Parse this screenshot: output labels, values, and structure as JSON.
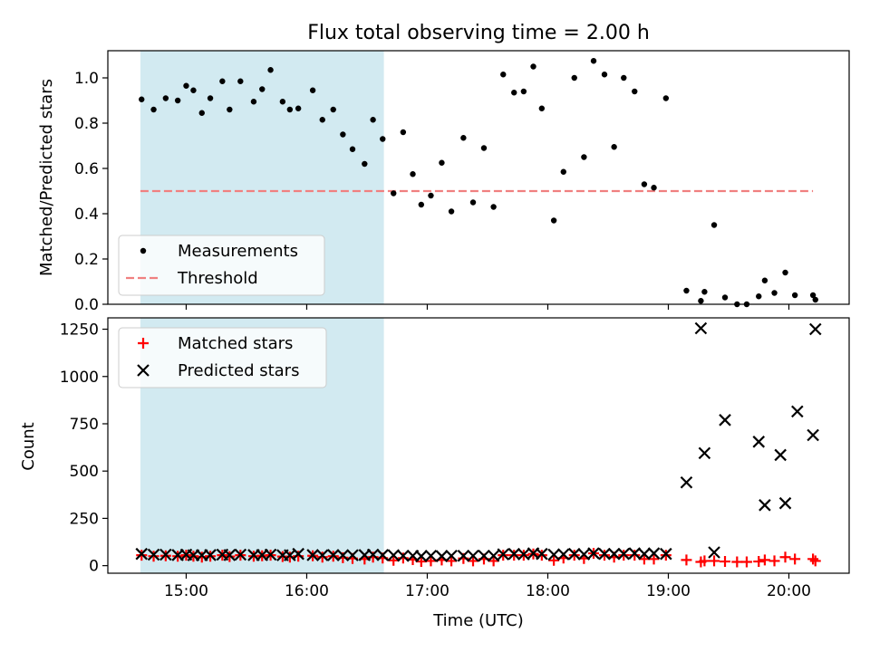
{
  "chart_data": [
    {
      "type": "scatter",
      "title": "Flux total observing time = 2.00 h",
      "xlabel": "",
      "ylabel": "Matched/Predicted stars",
      "xlim_hours": [
        14.35,
        20.5
      ],
      "ylim": [
        0,
        1.12
      ],
      "yticks": [
        0.0,
        0.2,
        0.4,
        0.6,
        0.8,
        1.0
      ],
      "ytick_labels": [
        "0.0",
        "0.2",
        "0.4",
        "0.6",
        "0.8",
        "1.0"
      ],
      "shaded_span_hours": [
        14.62,
        16.64
      ],
      "shaded_color": "#add8e6",
      "legend": [
        {
          "label": "Measurements",
          "marker": "dot",
          "color": "#000000"
        },
        {
          "label": "Threshold",
          "marker": "dashed-line",
          "color": "#f08080"
        }
      ],
      "threshold": {
        "value": 0.5,
        "x_range_hours": [
          14.62,
          20.2
        ],
        "color": "#f08080"
      },
      "series": [
        {
          "name": "Measurements",
          "color": "#000000",
          "x_hours": [
            14.63,
            14.73,
            14.83,
            14.93,
            15.0,
            15.06,
            15.13,
            15.2,
            15.3,
            15.36,
            15.45,
            15.56,
            15.63,
            15.7,
            15.8,
            15.86,
            15.93,
            16.05,
            16.13,
            16.22,
            16.3,
            16.38,
            16.48,
            16.55,
            16.63,
            16.72,
            16.8,
            16.88,
            16.95,
            17.03,
            17.12,
            17.2,
            17.3,
            17.38,
            17.47,
            17.55,
            17.63,
            17.72,
            17.8,
            17.88,
            17.95,
            18.05,
            18.13,
            18.22,
            18.3,
            18.38,
            18.47,
            18.55,
            18.63,
            18.72,
            18.8,
            18.88,
            18.98,
            19.15,
            19.27,
            19.3,
            19.38,
            19.47,
            19.57,
            19.65,
            19.75,
            19.8,
            19.88,
            19.97,
            20.05,
            20.2,
            20.22
          ],
          "y": [
            0.905,
            0.86,
            0.91,
            0.9,
            0.965,
            0.945,
            0.845,
            0.91,
            0.985,
            0.86,
            0.985,
            0.895,
            0.95,
            1.035,
            0.895,
            0.86,
            0.865,
            0.945,
            0.815,
            0.86,
            0.75,
            0.685,
            0.62,
            0.815,
            0.73,
            0.49,
            0.76,
            0.575,
            0.44,
            0.48,
            0.625,
            0.41,
            0.735,
            0.45,
            0.69,
            0.43,
            1.015,
            0.935,
            0.94,
            1.05,
            0.865,
            0.37,
            0.585,
            1.0,
            0.65,
            1.075,
            1.015,
            0.695,
            1.0,
            0.94,
            0.53,
            0.515,
            0.91,
            0.06,
            0.015,
            0.055,
            0.35,
            0.03,
            0.0,
            0.0,
            0.035,
            0.105,
            0.05,
            0.14,
            0.04,
            0.04,
            0.02
          ]
        }
      ]
    },
    {
      "type": "scatter",
      "title": "",
      "xlabel": "Time (UTC)",
      "ylabel": "Count",
      "xlim_hours": [
        14.35,
        20.5
      ],
      "ylim": [
        -40,
        1310
      ],
      "yticks": [
        0,
        250,
        500,
        750,
        1000,
        1250
      ],
      "ytick_labels": [
        "0",
        "250",
        "500",
        "750",
        "1000",
        "1250"
      ],
      "xticks_hours": [
        15,
        16,
        17,
        18,
        19,
        20
      ],
      "xtick_labels": [
        "15:00",
        "16:00",
        "17:00",
        "18:00",
        "19:00",
        "20:00"
      ],
      "shaded_span_hours": [
        14.62,
        16.64
      ],
      "shaded_color": "#add8e6",
      "legend": [
        {
          "label": "Matched stars",
          "marker": "plus",
          "color": "#ff0000"
        },
        {
          "label": "Predicted stars",
          "marker": "x",
          "color": "#000000"
        }
      ],
      "series": [
        {
          "name": "Matched stars",
          "marker": "plus",
          "color": "#ff0000",
          "x_hours": [
            14.63,
            14.73,
            14.83,
            14.93,
            15.0,
            15.06,
            15.13,
            15.2,
            15.3,
            15.36,
            15.45,
            15.56,
            15.63,
            15.7,
            15.8,
            15.86,
            15.93,
            16.05,
            16.13,
            16.22,
            16.3,
            16.38,
            16.48,
            16.55,
            16.63,
            16.72,
            16.8,
            16.88,
            16.95,
            17.03,
            17.12,
            17.2,
            17.3,
            17.38,
            17.47,
            17.55,
            17.63,
            17.72,
            17.8,
            17.88,
            17.95,
            18.05,
            18.13,
            18.22,
            18.3,
            18.38,
            18.47,
            18.55,
            18.63,
            18.72,
            18.8,
            18.88,
            18.98,
            19.15,
            19.27,
            19.3,
            19.38,
            19.47,
            19.57,
            19.65,
            19.75,
            19.8,
            19.88,
            19.97,
            20.05,
            20.2,
            20.22
          ],
          "y": [
            55,
            50,
            52,
            50,
            55,
            50,
            45,
            50,
            55,
            48,
            55,
            50,
            52,
            55,
            48,
            45,
            50,
            52,
            45,
            50,
            42,
            38,
            35,
            45,
            40,
            28,
            40,
            32,
            22,
            25,
            30,
            25,
            38,
            25,
            35,
            25,
            55,
            55,
            55,
            62,
            55,
            28,
            40,
            55,
            38,
            65,
            55,
            45,
            55,
            55,
            35,
            35,
            55,
            30,
            20,
            25,
            25,
            22,
            20,
            20,
            22,
            30,
            25,
            45,
            35,
            35,
            25
          ]
        },
        {
          "name": "Predicted stars",
          "marker": "x",
          "color": "#000000",
          "x_hours": [
            14.63,
            14.73,
            14.83,
            14.93,
            15.0,
            15.06,
            15.13,
            15.2,
            15.3,
            15.36,
            15.45,
            15.56,
            15.63,
            15.7,
            15.8,
            15.86,
            15.93,
            16.05,
            16.13,
            16.22,
            16.3,
            16.38,
            16.48,
            16.55,
            16.63,
            16.72,
            16.8,
            16.88,
            16.95,
            17.03,
            17.12,
            17.2,
            17.3,
            17.38,
            17.47,
            17.55,
            17.63,
            17.72,
            17.8,
            17.88,
            17.95,
            18.05,
            18.13,
            18.22,
            18.3,
            18.38,
            18.47,
            18.55,
            18.63,
            18.72,
            18.8,
            18.88,
            18.98,
            19.15,
            19.27,
            19.3,
            19.38,
            19.47,
            19.75,
            19.8,
            19.93,
            19.97,
            20.07,
            20.2,
            20.22
          ],
          "y": [
            62,
            58,
            58,
            56,
            58,
            55,
            55,
            56,
            58,
            56,
            58,
            56,
            56,
            58,
            55,
            55,
            62,
            56,
            55,
            56,
            55,
            55,
            56,
            58,
            56,
            55,
            52,
            52,
            50,
            52,
            50,
            52,
            52,
            52,
            52,
            52,
            60,
            62,
            60,
            65,
            62,
            58,
            60,
            62,
            60,
            65,
            62,
            62,
            62,
            65,
            62,
            65,
            62,
            440,
            1255,
            595,
            70,
            770,
            655,
            320,
            585,
            330,
            815,
            690,
            1250
          ]
        }
      ]
    }
  ]
}
